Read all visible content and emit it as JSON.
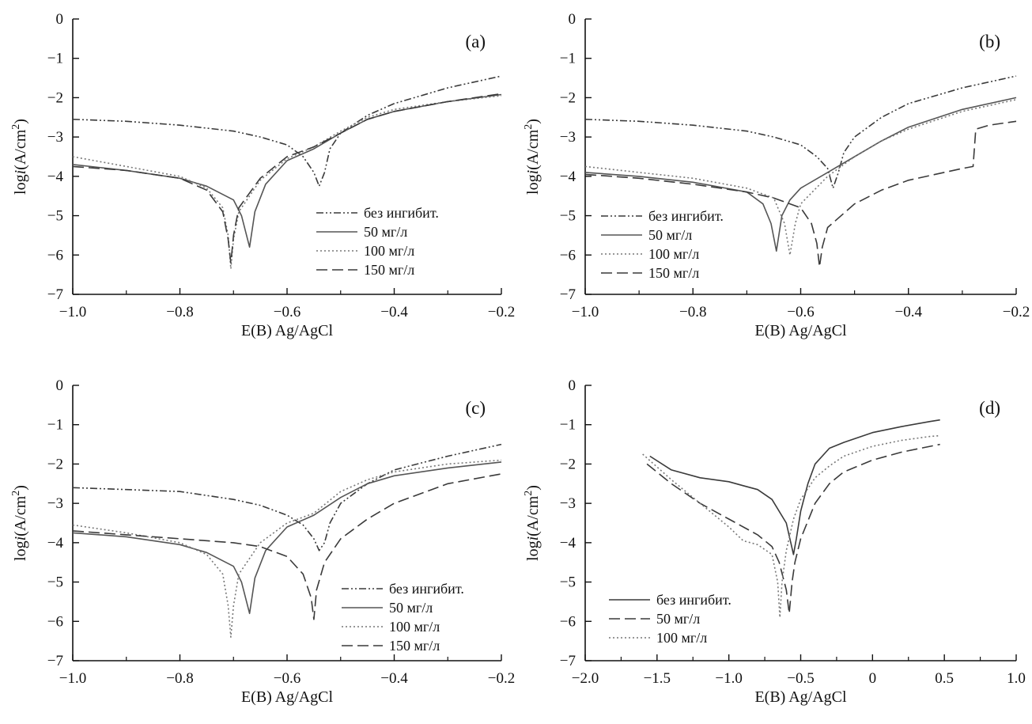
{
  "figure": {
    "axis_colors": {
      "axis": "#111111",
      "curve_dark": "#3a3a3a",
      "curve_mid": "#555555",
      "curve_light": "#777777"
    }
  },
  "chart_data": [
    {
      "type": "line",
      "panel_label": "(a)",
      "xlabel": "E(B) Ag/AgCl",
      "ylabel_prefix": "log",
      "ylabel_italic": "i",
      "ylabel_unit": "(A/cm",
      "ylabel_sup": "2",
      "ylabel_close": ")",
      "xlim": [
        -1.0,
        -0.2
      ],
      "ylim": [
        -7,
        0
      ],
      "xticks": [
        -1.0,
        -0.8,
        -0.6,
        -0.4,
        -0.2
      ],
      "xtick_labels": [
        "−1.0",
        "−0.8",
        "−0.6",
        "−0.4",
        "−0.2"
      ],
      "yticks": [
        0,
        -1,
        -2,
        -3,
        -4,
        -5,
        -6,
        -7
      ],
      "ytick_labels": [
        "0",
        "−1",
        "−2",
        "−3",
        "−4",
        "−5",
        "−6",
        "−7"
      ],
      "legend_position": "lower-right",
      "series": [
        {
          "name": "без ингибит.",
          "style": "dashdotdot",
          "color": "#3a3a3a",
          "x": [
            -1.0,
            -0.9,
            -0.8,
            -0.7,
            -0.65,
            -0.6,
            -0.57,
            -0.55,
            -0.54,
            -0.53,
            -0.52,
            -0.5,
            -0.45,
            -0.4,
            -0.3,
            -0.2
          ],
          "y": [
            -2.55,
            -2.6,
            -2.7,
            -2.85,
            -3.0,
            -3.2,
            -3.5,
            -3.9,
            -4.25,
            -3.9,
            -3.3,
            -2.9,
            -2.45,
            -2.15,
            -1.75,
            -1.45
          ]
        },
        {
          "name": "50 мг/л",
          "style": "solid",
          "color": "#555555",
          "x": [
            -1.0,
            -0.9,
            -0.8,
            -0.75,
            -0.7,
            -0.685,
            -0.67,
            -0.66,
            -0.64,
            -0.6,
            -0.55,
            -0.5,
            -0.45,
            -0.4,
            -0.3,
            -0.2
          ],
          "y": [
            -3.7,
            -3.85,
            -4.05,
            -4.25,
            -4.6,
            -5.0,
            -5.8,
            -4.9,
            -4.2,
            -3.6,
            -3.3,
            -2.9,
            -2.55,
            -2.35,
            -2.1,
            -1.92
          ]
        },
        {
          "name": "100 мг/л",
          "style": "dotted",
          "color": "#777777",
          "x": [
            -1.0,
            -0.9,
            -0.8,
            -0.75,
            -0.72,
            -0.71,
            -0.705,
            -0.7,
            -0.69,
            -0.65,
            -0.6,
            -0.55,
            -0.5,
            -0.45,
            -0.4,
            -0.3,
            -0.2
          ],
          "y": [
            -3.5,
            -3.75,
            -4.0,
            -4.3,
            -4.8,
            -5.5,
            -6.35,
            -5.6,
            -4.9,
            -4.1,
            -3.55,
            -3.25,
            -2.85,
            -2.5,
            -2.3,
            -2.1,
            -1.95
          ]
        },
        {
          "name": "150 мг/л",
          "style": "dashed",
          "color": "#3a3a3a",
          "x": [
            -1.0,
            -0.9,
            -0.8,
            -0.75,
            -0.72,
            -0.71,
            -0.705,
            -0.7,
            -0.69,
            -0.65,
            -0.6,
            -0.55,
            -0.5,
            -0.45,
            -0.4,
            -0.3,
            -0.2
          ],
          "y": [
            -3.75,
            -3.85,
            -4.05,
            -4.35,
            -4.9,
            -5.6,
            -6.2,
            -5.5,
            -4.8,
            -4.05,
            -3.5,
            -3.25,
            -2.9,
            -2.55,
            -2.35,
            -2.1,
            -1.9
          ]
        }
      ]
    },
    {
      "type": "line",
      "panel_label": "(b)",
      "xlabel": "E(B) Ag/AgCl",
      "ylabel_prefix": "log",
      "ylabel_italic": "i",
      "ylabel_unit": "(A/cm",
      "ylabel_sup": "2",
      "ylabel_close": ")",
      "xlim": [
        -1.0,
        -0.2
      ],
      "ylim": [
        -7,
        0
      ],
      "xticks": [
        -1.0,
        -0.8,
        -0.6,
        -0.4,
        -0.2
      ],
      "xtick_labels": [
        "−1.0",
        "−0.8",
        "−0.6",
        "−0.4",
        "−0.2"
      ],
      "yticks": [
        0,
        -1,
        -2,
        -3,
        -4,
        -5,
        -6,
        -7
      ],
      "ytick_labels": [
        "0",
        "−1",
        "−2",
        "−3",
        "−4",
        "−5",
        "−6",
        "−7"
      ],
      "legend_position": "lower-left",
      "series": [
        {
          "name": "без ингибит.",
          "style": "dashdotdot",
          "color": "#3a3a3a",
          "x": [
            -1.0,
            -0.9,
            -0.8,
            -0.7,
            -0.65,
            -0.6,
            -0.57,
            -0.55,
            -0.54,
            -0.53,
            -0.52,
            -0.5,
            -0.45,
            -0.4,
            -0.3,
            -0.2
          ],
          "y": [
            -2.55,
            -2.6,
            -2.7,
            -2.85,
            -3.0,
            -3.2,
            -3.5,
            -3.8,
            -4.3,
            -3.9,
            -3.4,
            -3.0,
            -2.5,
            -2.15,
            -1.75,
            -1.45
          ]
        },
        {
          "name": "50 мг/л",
          "style": "solid",
          "color": "#555555",
          "x": [
            -1.0,
            -0.9,
            -0.8,
            -0.7,
            -0.67,
            -0.655,
            -0.645,
            -0.635,
            -0.62,
            -0.6,
            -0.55,
            -0.5,
            -0.45,
            -0.4,
            -0.3,
            -0.2
          ],
          "y": [
            -3.9,
            -4.0,
            -4.15,
            -4.4,
            -4.7,
            -5.2,
            -5.9,
            -5.0,
            -4.6,
            -4.3,
            -3.9,
            -3.5,
            -3.1,
            -2.75,
            -2.3,
            -2.0
          ]
        },
        {
          "name": "100 мг/л",
          "style": "dotted",
          "color": "#777777",
          "x": [
            -1.0,
            -0.9,
            -0.8,
            -0.7,
            -0.65,
            -0.63,
            -0.62,
            -0.61,
            -0.6,
            -0.55,
            -0.5,
            -0.45,
            -0.4,
            -0.3,
            -0.2
          ],
          "y": [
            -3.75,
            -3.9,
            -4.05,
            -4.3,
            -4.55,
            -5.2,
            -6.0,
            -5.2,
            -4.7,
            -4.0,
            -3.5,
            -3.1,
            -2.8,
            -2.35,
            -2.05
          ]
        },
        {
          "name": "150 мг/л",
          "style": "dashed",
          "color": "#3a3a3a",
          "x": [
            -1.0,
            -0.9,
            -0.8,
            -0.7,
            -0.65,
            -0.6,
            -0.58,
            -0.57,
            -0.565,
            -0.56,
            -0.55,
            -0.5,
            -0.45,
            -0.4,
            -0.3,
            -0.28,
            -0.275,
            -0.25,
            -0.2
          ],
          "y": [
            -3.95,
            -4.05,
            -4.2,
            -4.4,
            -4.55,
            -4.8,
            -5.2,
            -5.7,
            -6.3,
            -5.8,
            -5.3,
            -4.7,
            -4.35,
            -4.1,
            -3.8,
            -3.75,
            -2.8,
            -2.7,
            -2.6
          ]
        }
      ]
    },
    {
      "type": "line",
      "panel_label": "(c)",
      "xlabel": "E(B) Ag/AgCl",
      "ylabel_prefix": "log",
      "ylabel_italic": "i",
      "ylabel_unit": "(A/cm",
      "ylabel_sup": "2",
      "ylabel_close": ")",
      "xlim": [
        -1.0,
        -0.2
      ],
      "ylim": [
        -7,
        0
      ],
      "xticks": [
        -1.0,
        -0.8,
        -0.6,
        -0.4,
        -0.2
      ],
      "xtick_labels": [
        "−1.0",
        "−0.8",
        "−0.6",
        "−0.4",
        "−0.2"
      ],
      "yticks": [
        0,
        -1,
        -2,
        -3,
        -4,
        -5,
        -6,
        -7
      ],
      "ytick_labels": [
        "0",
        "−1",
        "−2",
        "−3",
        "−4",
        "−5",
        "−6",
        "−7"
      ],
      "legend_position": "lower-right",
      "series": [
        {
          "name": "без ингибит.",
          "style": "dashdotdot",
          "color": "#3a3a3a",
          "x": [
            -1.0,
            -0.9,
            -0.8,
            -0.7,
            -0.65,
            -0.6,
            -0.57,
            -0.55,
            -0.54,
            -0.53,
            -0.52,
            -0.5,
            -0.45,
            -0.4,
            -0.3,
            -0.2
          ],
          "y": [
            -2.6,
            -2.65,
            -2.7,
            -2.9,
            -3.05,
            -3.3,
            -3.55,
            -3.9,
            -4.2,
            -4.0,
            -3.5,
            -3.0,
            -2.5,
            -2.15,
            -1.8,
            -1.5
          ]
        },
        {
          "name": "50 мг/л",
          "style": "solid",
          "color": "#555555",
          "x": [
            -1.0,
            -0.9,
            -0.8,
            -0.75,
            -0.7,
            -0.685,
            -0.67,
            -0.66,
            -0.64,
            -0.6,
            -0.55,
            -0.5,
            -0.45,
            -0.4,
            -0.3,
            -0.2
          ],
          "y": [
            -3.75,
            -3.85,
            -4.05,
            -4.25,
            -4.6,
            -5.0,
            -5.8,
            -4.9,
            -4.2,
            -3.6,
            -3.3,
            -2.85,
            -2.5,
            -2.3,
            -2.1,
            -1.95
          ]
        },
        {
          "name": "100 мг/л",
          "style": "dotted",
          "color": "#777777",
          "x": [
            -1.0,
            -0.9,
            -0.8,
            -0.75,
            -0.72,
            -0.71,
            -0.705,
            -0.7,
            -0.69,
            -0.65,
            -0.6,
            -0.55,
            -0.5,
            -0.45,
            -0.4,
            -0.3,
            -0.2
          ],
          "y": [
            -3.55,
            -3.75,
            -4.0,
            -4.3,
            -4.8,
            -5.6,
            -6.4,
            -5.6,
            -4.8,
            -4.0,
            -3.5,
            -3.25,
            -2.7,
            -2.4,
            -2.2,
            -2.0,
            -1.9
          ]
        },
        {
          "name": "150 мг/л",
          "style": "dashed",
          "color": "#3a3a3a",
          "x": [
            -1.0,
            -0.9,
            -0.8,
            -0.7,
            -0.65,
            -0.6,
            -0.57,
            -0.555,
            -0.55,
            -0.545,
            -0.53,
            -0.5,
            -0.45,
            -0.4,
            -0.3,
            -0.2
          ],
          "y": [
            -3.7,
            -3.8,
            -3.9,
            -4.0,
            -4.1,
            -4.35,
            -4.8,
            -5.4,
            -5.95,
            -5.2,
            -4.5,
            -3.9,
            -3.4,
            -3.0,
            -2.5,
            -2.25
          ]
        }
      ]
    },
    {
      "type": "line",
      "panel_label": "(d)",
      "xlabel": "E(B) Ag/AgCl",
      "ylabel_prefix": "log",
      "ylabel_italic": "i",
      "ylabel_unit": "(A/cm",
      "ylabel_sup": "2",
      "ylabel_close": ")",
      "xlim": [
        -2.0,
        1.0
      ],
      "ylim": [
        -7,
        0
      ],
      "xticks": [
        -2.0,
        -1.5,
        -1.0,
        -0.5,
        0,
        0.5,
        1.0
      ],
      "xtick_labels": [
        "−2.0",
        "−1.5",
        "−1.0",
        "−0.5",
        "0",
        "0.5",
        "1.0"
      ],
      "yticks": [
        0,
        -1,
        -2,
        -3,
        -4,
        -5,
        -6,
        -7
      ],
      "ytick_labels": [
        "0",
        "−1",
        "−2",
        "−3",
        "−4",
        "−5",
        "−6",
        "−7"
      ],
      "legend_position": "lower-left",
      "series": [
        {
          "name": "без ингибит.",
          "style": "solid",
          "color": "#3a3a3a",
          "x": [
            -1.55,
            -1.4,
            -1.2,
            -1.0,
            -0.9,
            -0.8,
            -0.7,
            -0.6,
            -0.55,
            -0.53,
            -0.5,
            -0.45,
            -0.4,
            -0.3,
            -0.2,
            0.0,
            0.2,
            0.4,
            0.47
          ],
          "y": [
            -1.8,
            -2.15,
            -2.35,
            -2.45,
            -2.55,
            -2.65,
            -2.9,
            -3.5,
            -4.3,
            -3.9,
            -3.2,
            -2.5,
            -2.0,
            -1.6,
            -1.45,
            -1.2,
            -1.05,
            -0.92,
            -0.88
          ]
        },
        {
          "name": "50 мг/л",
          "style": "dashed",
          "color": "#3a3a3a",
          "x": [
            -1.57,
            -1.4,
            -1.2,
            -1.0,
            -0.8,
            -0.7,
            -0.65,
            -0.6,
            -0.58,
            -0.56,
            -0.54,
            -0.5,
            -0.4,
            -0.3,
            -0.2,
            0.0,
            0.2,
            0.4,
            0.47
          ],
          "y": [
            -2.0,
            -2.5,
            -3.0,
            -3.4,
            -3.8,
            -4.1,
            -4.5,
            -5.2,
            -5.8,
            -5.0,
            -4.5,
            -3.9,
            -3.0,
            -2.5,
            -2.2,
            -1.9,
            -1.7,
            -1.55,
            -1.5
          ]
        },
        {
          "name": "100 мг/л",
          "style": "dotted",
          "color": "#777777",
          "x": [
            -1.6,
            -1.4,
            -1.2,
            -1.0,
            -0.9,
            -0.8,
            -0.7,
            -0.66,
            -0.645,
            -0.63,
            -0.6,
            -0.55,
            -0.5,
            -0.4,
            -0.3,
            -0.2,
            0.0,
            0.2,
            0.4,
            0.47
          ],
          "y": [
            -1.75,
            -2.4,
            -3.0,
            -3.6,
            -3.95,
            -4.05,
            -4.3,
            -5.0,
            -5.9,
            -5.0,
            -4.2,
            -3.4,
            -2.9,
            -2.35,
            -2.05,
            -1.8,
            -1.55,
            -1.4,
            -1.3,
            -1.28
          ]
        }
      ]
    }
  ]
}
